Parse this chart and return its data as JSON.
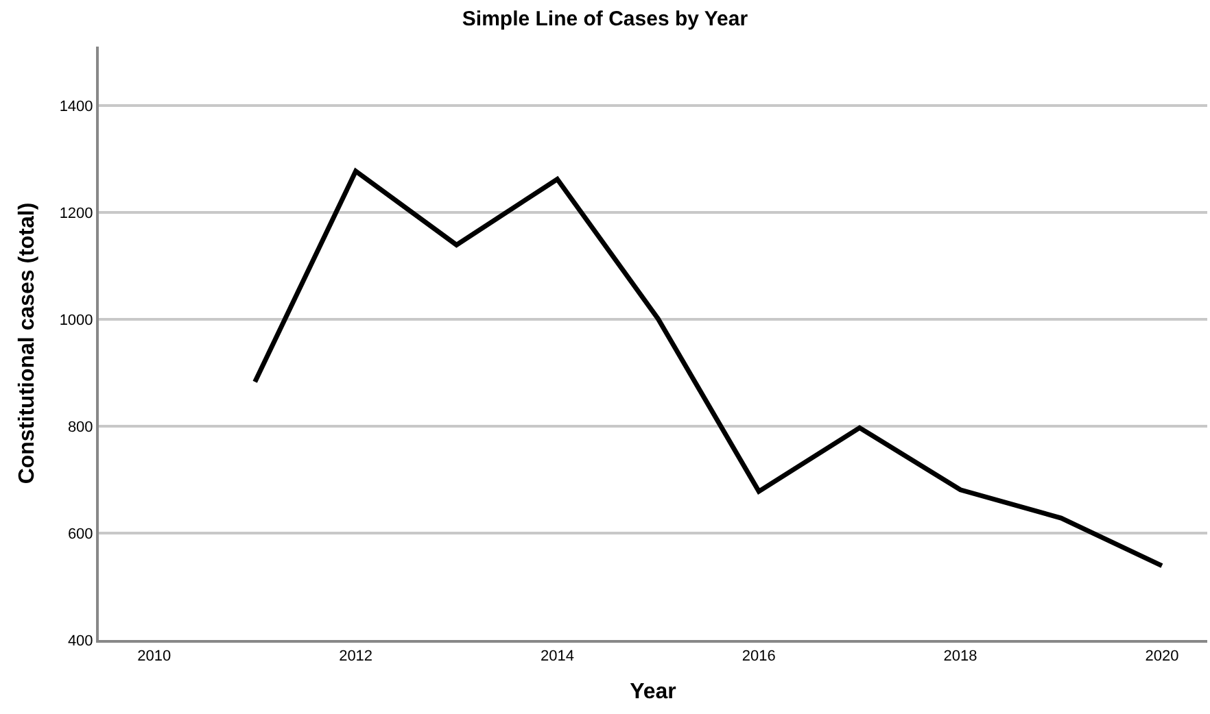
{
  "chart_data": {
    "type": "line",
    "title": "Simple Line of Cases by Year",
    "xlabel": "Year",
    "ylabel": "Constitutional cases (total)",
    "x": [
      2011,
      2012,
      2013,
      2014,
      2015,
      2016,
      2017,
      2018,
      2019,
      2020
    ],
    "series": [
      {
        "color": "#000000",
        "values": [
          883,
          1277,
          1139,
          1262,
          1001,
          678,
          797,
          681,
          628,
          539
        ]
      }
    ],
    "xlim": [
      2009.45,
      2020.45
    ],
    "xticks": [
      2010,
      2012,
      2014,
      2016,
      2018,
      2020
    ],
    "ylim": [
      400,
      1510
    ],
    "yticks": [
      400,
      600,
      800,
      1000,
      1200,
      1400
    ],
    "grid": "y",
    "marker": "none",
    "line_style": "solid"
  }
}
